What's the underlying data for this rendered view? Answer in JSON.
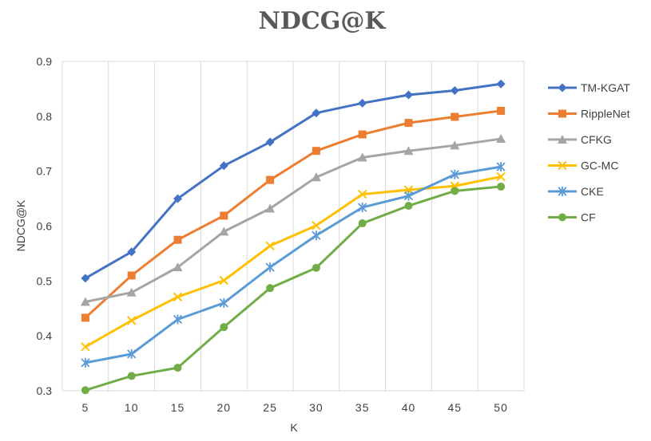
{
  "chart_data": {
    "type": "line",
    "title": "NDCG@K",
    "xlabel": "K",
    "ylabel": "NDCG@K",
    "categories": [
      "5",
      "10",
      "15",
      "20",
      "25",
      "30",
      "35",
      "40",
      "45",
      "50"
    ],
    "ylim": [
      0.3,
      0.9
    ],
    "yticks": [
      "0.3",
      "0.4",
      "0.5",
      "0.6",
      "0.7",
      "0.8",
      "0.9"
    ],
    "grid": "vertical",
    "legend_position": "right",
    "series": [
      {
        "name": "TM-KGAT",
        "color": "#4472C4",
        "marker": "diamond",
        "values": [
          0.505,
          0.553,
          0.65,
          0.71,
          0.753,
          0.806,
          0.824,
          0.839,
          0.847,
          0.859
        ]
      },
      {
        "name": "RippleNet",
        "color": "#ED7D31",
        "marker": "square",
        "values": [
          0.433,
          0.51,
          0.575,
          0.619,
          0.684,
          0.737,
          0.767,
          0.788,
          0.799,
          0.81
        ]
      },
      {
        "name": "CFKG",
        "color": "#A5A5A5",
        "marker": "triangle",
        "values": [
          0.462,
          0.479,
          0.525,
          0.59,
          0.632,
          0.689,
          0.725,
          0.737,
          0.747,
          0.759
        ]
      },
      {
        "name": "GC-MC",
        "color": "#FFC000",
        "marker": "x",
        "values": [
          0.38,
          0.428,
          0.471,
          0.501,
          0.564,
          0.601,
          0.658,
          0.666,
          0.673,
          0.69
        ]
      },
      {
        "name": "CKE",
        "color": "#5B9BD5",
        "marker": "star",
        "values": [
          0.351,
          0.367,
          0.43,
          0.46,
          0.525,
          0.583,
          0.634,
          0.655,
          0.694,
          0.708
        ]
      },
      {
        "name": "CF",
        "color": "#70AD47",
        "marker": "circle",
        "values": [
          0.301,
          0.327,
          0.342,
          0.416,
          0.487,
          0.524,
          0.605,
          0.637,
          0.664,
          0.672
        ]
      }
    ]
  }
}
